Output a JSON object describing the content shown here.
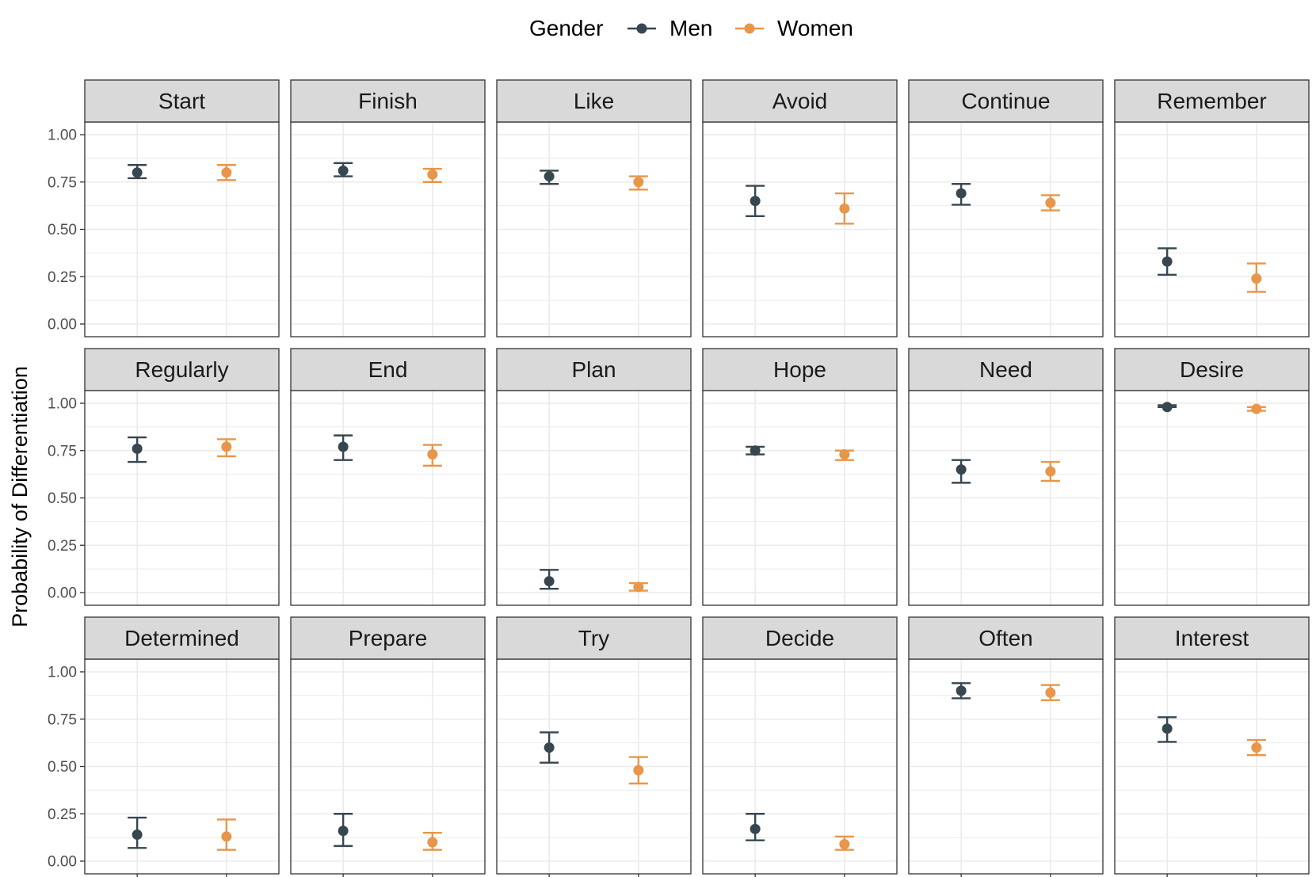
{
  "chart_data": {
    "type": "scatter",
    "subtype": "point-with-errorbars, faceted",
    "title": "",
    "xlabel": "",
    "ylabel": "Probability of Differentiation",
    "ylim": [
      0,
      1
    ],
    "y_ticks": [
      "0.00",
      "0.25",
      "0.50",
      "0.75",
      "1.00"
    ],
    "grid": true,
    "facet_layout": {
      "rows": 3,
      "cols": 6
    },
    "legend": {
      "title": "Gender",
      "position": "top",
      "entries": [
        {
          "name": "Men",
          "color": "#37474f"
        },
        {
          "name": "Women",
          "color": "#e8964a"
        }
      ]
    },
    "x_categories": [
      "Men",
      "Women"
    ],
    "facets": [
      {
        "label": "Start",
        "series": [
          {
            "name": "Men",
            "value": 0.8,
            "low": 0.77,
            "high": 0.84
          },
          {
            "name": "Women",
            "value": 0.8,
            "low": 0.76,
            "high": 0.84
          }
        ]
      },
      {
        "label": "Finish",
        "series": [
          {
            "name": "Men",
            "value": 0.81,
            "low": 0.78,
            "high": 0.85
          },
          {
            "name": "Women",
            "value": 0.79,
            "low": 0.75,
            "high": 0.82
          }
        ]
      },
      {
        "label": "Like",
        "series": [
          {
            "name": "Men",
            "value": 0.78,
            "low": 0.74,
            "high": 0.81
          },
          {
            "name": "Women",
            "value": 0.75,
            "low": 0.71,
            "high": 0.78
          }
        ]
      },
      {
        "label": "Avoid",
        "series": [
          {
            "name": "Men",
            "value": 0.65,
            "low": 0.57,
            "high": 0.73
          },
          {
            "name": "Women",
            "value": 0.61,
            "low": 0.53,
            "high": 0.69
          }
        ]
      },
      {
        "label": "Continue",
        "series": [
          {
            "name": "Men",
            "value": 0.69,
            "low": 0.63,
            "high": 0.74
          },
          {
            "name": "Women",
            "value": 0.64,
            "low": 0.6,
            "high": 0.68
          }
        ]
      },
      {
        "label": "Remember",
        "series": [
          {
            "name": "Men",
            "value": 0.33,
            "low": 0.26,
            "high": 0.4
          },
          {
            "name": "Women",
            "value": 0.24,
            "low": 0.17,
            "high": 0.32
          }
        ]
      },
      {
        "label": "Regularly",
        "series": [
          {
            "name": "Men",
            "value": 0.76,
            "low": 0.69,
            "high": 0.82
          },
          {
            "name": "Women",
            "value": 0.77,
            "low": 0.72,
            "high": 0.81
          }
        ]
      },
      {
        "label": "End",
        "series": [
          {
            "name": "Men",
            "value": 0.77,
            "low": 0.7,
            "high": 0.83
          },
          {
            "name": "Women",
            "value": 0.73,
            "low": 0.67,
            "high": 0.78
          }
        ]
      },
      {
        "label": "Plan",
        "series": [
          {
            "name": "Men",
            "value": 0.06,
            "low": 0.02,
            "high": 0.12
          },
          {
            "name": "Women",
            "value": 0.03,
            "low": 0.01,
            "high": 0.05
          }
        ]
      },
      {
        "label": "Hope",
        "series": [
          {
            "name": "Men",
            "value": 0.75,
            "low": 0.73,
            "high": 0.77
          },
          {
            "name": "Women",
            "value": 0.73,
            "low": 0.7,
            "high": 0.75
          }
        ]
      },
      {
        "label": "Need",
        "series": [
          {
            "name": "Men",
            "value": 0.65,
            "low": 0.58,
            "high": 0.7
          },
          {
            "name": "Women",
            "value": 0.64,
            "low": 0.59,
            "high": 0.69
          }
        ]
      },
      {
        "label": "Desire",
        "series": [
          {
            "name": "Men",
            "value": 0.98,
            "low": 0.98,
            "high": 0.99
          },
          {
            "name": "Women",
            "value": 0.97,
            "low": 0.96,
            "high": 0.98
          }
        ]
      },
      {
        "label": "Determined",
        "series": [
          {
            "name": "Men",
            "value": 0.14,
            "low": 0.07,
            "high": 0.23
          },
          {
            "name": "Women",
            "value": 0.13,
            "low": 0.06,
            "high": 0.22
          }
        ]
      },
      {
        "label": "Prepare",
        "series": [
          {
            "name": "Men",
            "value": 0.16,
            "low": 0.08,
            "high": 0.25
          },
          {
            "name": "Women",
            "value": 0.1,
            "low": 0.06,
            "high": 0.15
          }
        ]
      },
      {
        "label": "Try",
        "series": [
          {
            "name": "Men",
            "value": 0.6,
            "low": 0.52,
            "high": 0.68
          },
          {
            "name": "Women",
            "value": 0.48,
            "low": 0.41,
            "high": 0.55
          }
        ]
      },
      {
        "label": "Decide",
        "series": [
          {
            "name": "Men",
            "value": 0.17,
            "low": 0.11,
            "high": 0.25
          },
          {
            "name": "Women",
            "value": 0.09,
            "low": 0.06,
            "high": 0.13
          }
        ]
      },
      {
        "label": "Often",
        "series": [
          {
            "name": "Men",
            "value": 0.9,
            "low": 0.86,
            "high": 0.94
          },
          {
            "name": "Women",
            "value": 0.89,
            "low": 0.85,
            "high": 0.93
          }
        ]
      },
      {
        "label": "Interest",
        "series": [
          {
            "name": "Men",
            "value": 0.7,
            "low": 0.63,
            "high": 0.76
          },
          {
            "name": "Women",
            "value": 0.6,
            "low": 0.56,
            "high": 0.64
          }
        ]
      }
    ]
  }
}
